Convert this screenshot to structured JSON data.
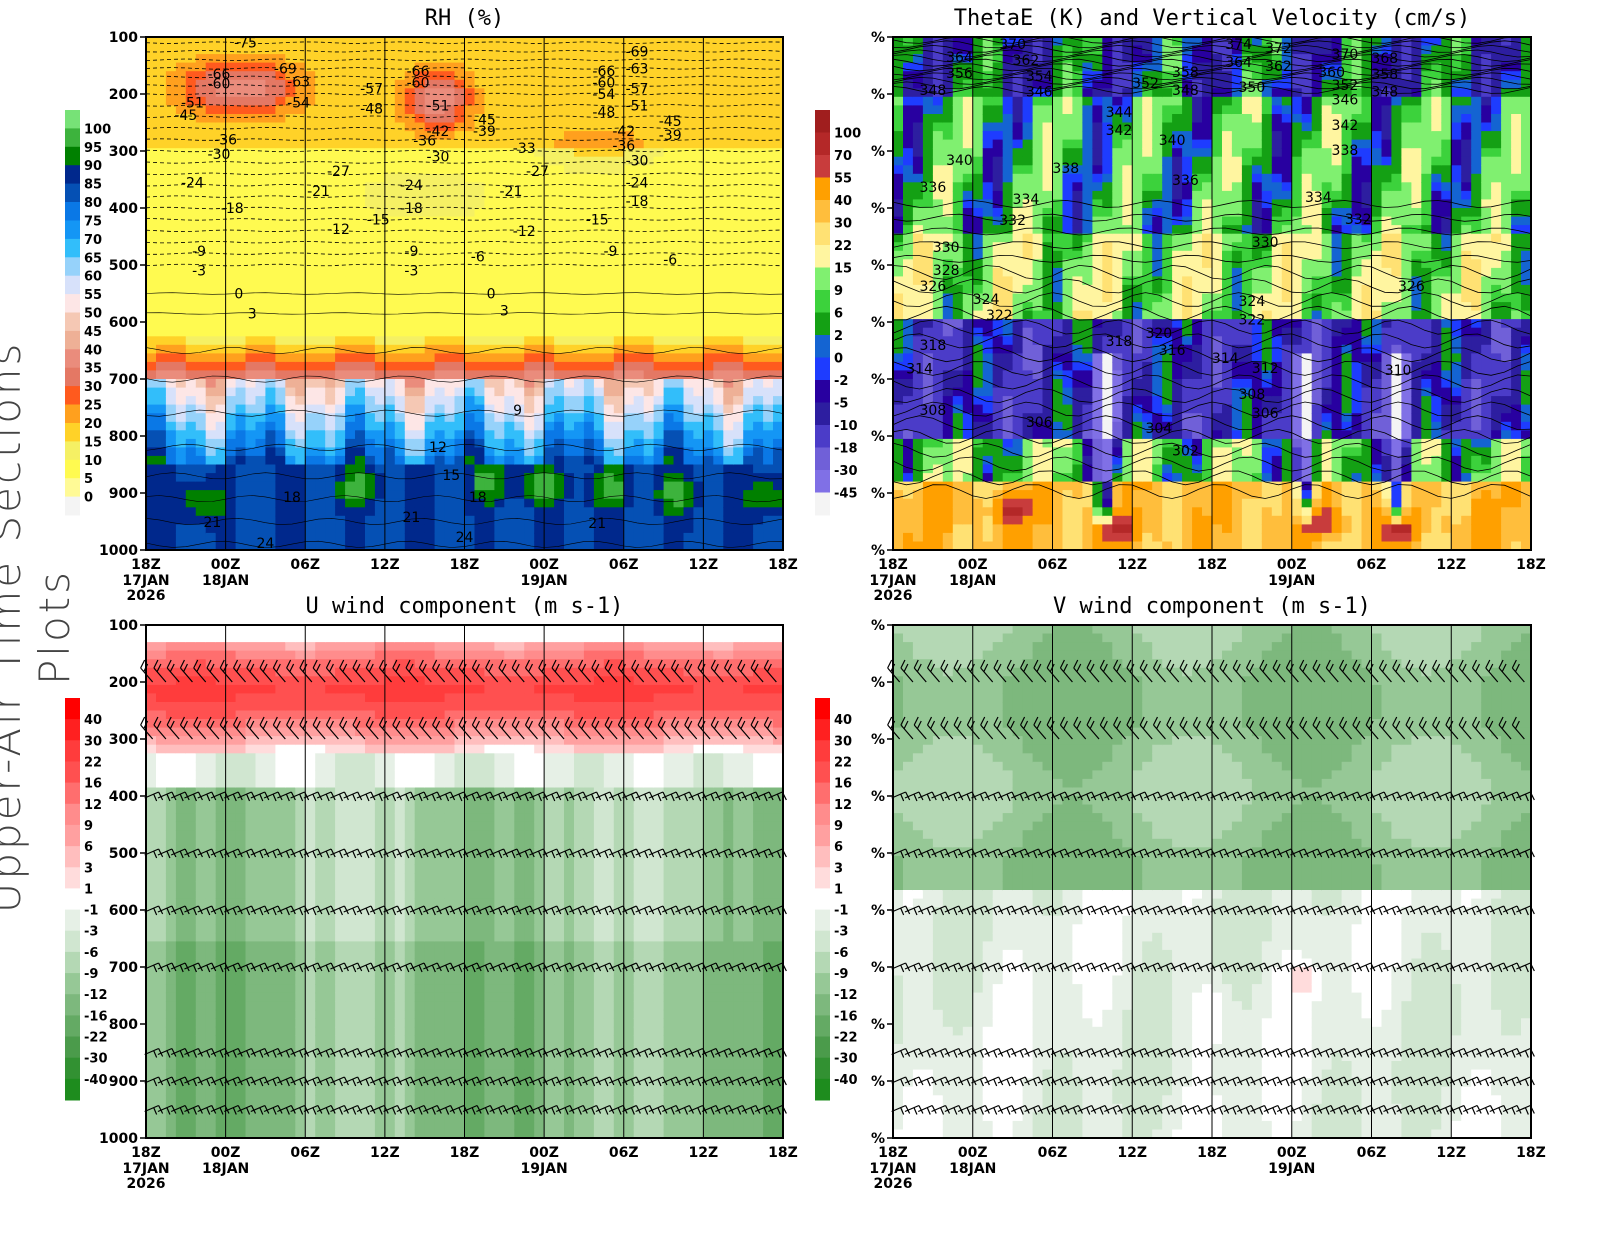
{
  "page": {
    "side_title": "Upper-Air Time Sections Plots"
  },
  "time_axis": {
    "ticks": [
      "18Z",
      "00Z",
      "06Z",
      "12Z",
      "18Z",
      "00Z",
      "06Z",
      "12Z",
      "18Z"
    ],
    "hours": [
      0,
      6,
      12,
      18,
      24,
      30,
      36,
      42,
      48
    ],
    "dates": [
      {
        "tick": 0,
        "lines": [
          "17JAN",
          "2026"
        ]
      },
      {
        "tick": 1,
        "lines": [
          "18JAN"
        ]
      },
      {
        "tick": 5,
        "lines": [
          "19JAN"
        ]
      }
    ],
    "range_hours": [
      0,
      48
    ]
  },
  "chart_data": [
    {
      "id": "rh",
      "type": "heatmap",
      "title": "RH (%)",
      "ylabels": [
        "100",
        "200",
        "300",
        "400",
        "500",
        "600",
        "700",
        "800",
        "900",
        "1000"
      ],
      "yvalues": [
        100,
        200,
        300,
        400,
        500,
        600,
        700,
        800,
        900,
        1000
      ],
      "ylim": [
        100,
        1000
      ],
      "colorbar": {
        "labels": [
          "100",
          "95",
          "90",
          "85",
          "80",
          "75",
          "70",
          "65",
          "60",
          "55",
          "50",
          "45",
          "40",
          "35",
          "30",
          "25",
          "20",
          "15",
          "10",
          "5",
          "0"
        ],
        "colors": [
          "#77e277",
          "#3db33d",
          "#008000",
          "#00288c",
          "#0550b4",
          "#0a78e6",
          "#1496f5",
          "#32befa",
          "#96d2fa",
          "#d7e1fa",
          "#fde6e6",
          "#f5c8b4",
          "#eeb096",
          "#ea8c7c",
          "#e47864",
          "#ff5a1e",
          "#ffa01e",
          "#ffd228",
          "#f5f064",
          "#fffa50",
          "#fffa96",
          "#f4f4f4"
        ]
      },
      "contour_labels": [
        [
          7.5,
          110,
          "-75"
        ],
        [
          10.5,
          155,
          "-69"
        ],
        [
          5.5,
          165,
          "-66"
        ],
        [
          11.5,
          178,
          "-63"
        ],
        [
          5.5,
          182,
          "-60"
        ],
        [
          11.5,
          215,
          "-54"
        ],
        [
          3.5,
          215,
          "-51"
        ],
        [
          3,
          237,
          "-45"
        ],
        [
          17,
          190,
          "-57"
        ],
        [
          17,
          225,
          "-48"
        ],
        [
          20.5,
          160,
          "-66"
        ],
        [
          20.5,
          180,
          "-60"
        ],
        [
          22,
          220,
          "-51"
        ],
        [
          25.5,
          245,
          "-45"
        ],
        [
          22,
          265,
          "-42"
        ],
        [
          25.5,
          265,
          "-39"
        ],
        [
          21,
          282,
          "-36"
        ],
        [
          22,
          310,
          "-30"
        ],
        [
          6,
          280,
          "-36"
        ],
        [
          5.5,
          305,
          "-30"
        ],
        [
          28.5,
          295,
          "-33"
        ],
        [
          29.5,
          335,
          "-27"
        ],
        [
          14.5,
          335,
          "-27"
        ],
        [
          3.5,
          355,
          "-24"
        ],
        [
          20,
          360,
          "-24"
        ],
        [
          13,
          370,
          "-21"
        ],
        [
          27.5,
          370,
          "-21"
        ],
        [
          6.5,
          400,
          "-18"
        ],
        [
          20,
          400,
          "-18"
        ],
        [
          17.5,
          420,
          "-15"
        ],
        [
          14.5,
          437,
          "-12"
        ],
        [
          28.5,
          440,
          "-12"
        ],
        [
          4,
          475,
          "-9"
        ],
        [
          20,
          475,
          "-9"
        ],
        [
          4,
          510,
          "-3"
        ],
        [
          20,
          510,
          "-3"
        ],
        [
          25,
          485,
          "-6"
        ],
        [
          7,
          550,
          "0"
        ],
        [
          8,
          585,
          "3"
        ],
        [
          26,
          550,
          "0"
        ],
        [
          27,
          580,
          "3"
        ],
        [
          34.5,
          160,
          "-66"
        ],
        [
          37,
          125,
          "-69"
        ],
        [
          37,
          155,
          "-63"
        ],
        [
          34.5,
          180,
          "-60"
        ],
        [
          37,
          190,
          "-57"
        ],
        [
          34.5,
          200,
          "-54"
        ],
        [
          37,
          220,
          "-51"
        ],
        [
          34.5,
          232,
          "-48"
        ],
        [
          39.5,
          247,
          "-45"
        ],
        [
          36,
          265,
          "-42"
        ],
        [
          39.5,
          272,
          "-39"
        ],
        [
          36,
          290,
          "-36"
        ],
        [
          37,
          317,
          "-30"
        ],
        [
          37,
          355,
          "-24"
        ],
        [
          37,
          388,
          "-18"
        ],
        [
          34,
          420,
          "-15"
        ],
        [
          35,
          475,
          "-9"
        ],
        [
          39.5,
          490,
          "-6"
        ],
        [
          28,
          754,
          "9"
        ],
        [
          22,
          819,
          "12"
        ],
        [
          23,
          868,
          "15"
        ],
        [
          11,
          907,
          "18"
        ],
        [
          25,
          907,
          "18"
        ],
        [
          5,
          951,
          "21"
        ],
        [
          20,
          942,
          "21"
        ],
        [
          34,
          953,
          "21"
        ],
        [
          9,
          988,
          "24"
        ],
        [
          24,
          977,
          "24"
        ]
      ]
    },
    {
      "id": "thetae",
      "type": "heatmap",
      "title": "ThetaE (K) and Vertical Velocity (cm/s)",
      "ylabels": [
        "%",
        "%",
        "%",
        "%",
        "%",
        "%",
        "%",
        "%",
        "%",
        "%"
      ],
      "yvalues": [
        100,
        200,
        300,
        400,
        500,
        600,
        700,
        800,
        900,
        1000
      ],
      "ylim": [
        100,
        1000
      ],
      "colorbar": {
        "labels": [
          "100",
          "70",
          "55",
          "40",
          "30",
          "22",
          "15",
          "9",
          "6",
          "2",
          "0",
          "-2",
          "-5",
          "-10",
          "-18",
          "-30",
          "-45"
        ],
        "colors": [
          "#a01e1e",
          "#b42828",
          "#c83c3c",
          "#ffa000",
          "#ffbe3c",
          "#ffe173",
          "#fff5a0",
          "#80f070",
          "#3cd23c",
          "#14a014",
          "#1464d2",
          "#1e3cff",
          "#2800a0",
          "#2d1ea0",
          "#4b3cc8",
          "#7060d8",
          "#8070e6",
          "#f4f4f4"
        ]
      },
      "contour_labels": [
        [
          5,
          135,
          "364"
        ],
        [
          9,
          112,
          "370"
        ],
        [
          5,
          163,
          "356"
        ],
        [
          10,
          140,
          "362"
        ],
        [
          11,
          168,
          "354"
        ],
        [
          3,
          193,
          "348"
        ],
        [
          11,
          196,
          "346"
        ],
        [
          26,
          112,
          "374"
        ],
        [
          29,
          119,
          "372"
        ],
        [
          26,
          144,
          "364"
        ],
        [
          29,
          151,
          "362"
        ],
        [
          34,
          130,
          "370"
        ],
        [
          37,
          137,
          "368"
        ],
        [
          33,
          161,
          "360"
        ],
        [
          37,
          165,
          "358"
        ],
        [
          22,
          161,
          "358"
        ],
        [
          19,
          181,
          "352"
        ],
        [
          22,
          193,
          "348"
        ],
        [
          27,
          188,
          "350"
        ],
        [
          34,
          184,
          "352"
        ],
        [
          37,
          196,
          "348"
        ],
        [
          34,
          210,
          "346"
        ],
        [
          17,
          232,
          "344"
        ],
        [
          17,
          263,
          "342"
        ],
        [
          34,
          254,
          "342"
        ],
        [
          21,
          281,
          "340"
        ],
        [
          34,
          298,
          "338"
        ],
        [
          5,
          316,
          "340"
        ],
        [
          13,
          330,
          "338"
        ],
        [
          22,
          351,
          "336"
        ],
        [
          3,
          363,
          "336"
        ],
        [
          10,
          384,
          "334"
        ],
        [
          32,
          381,
          "334"
        ],
        [
          9,
          421,
          "332"
        ],
        [
          35,
          419,
          "332"
        ],
        [
          4,
          468,
          "330"
        ],
        [
          28,
          460,
          "330"
        ],
        [
          4,
          509,
          "328"
        ],
        [
          3,
          537,
          "326"
        ],
        [
          39,
          537,
          "326"
        ],
        [
          7,
          560,
          "324"
        ],
        [
          27,
          563,
          "324"
        ],
        [
          8,
          588,
          "322"
        ],
        [
          27,
          596,
          "322"
        ],
        [
          20,
          619,
          "320"
        ],
        [
          17,
          633,
          "318"
        ],
        [
          3,
          640,
          "318"
        ],
        [
          21,
          649,
          "316"
        ],
        [
          2,
          682,
          "314"
        ],
        [
          25,
          663,
          "314"
        ],
        [
          28,
          681,
          "312"
        ],
        [
          38,
          684,
          "310"
        ],
        [
          3,
          754,
          "308"
        ],
        [
          27,
          726,
          "308"
        ],
        [
          11,
          775,
          "306"
        ],
        [
          28,
          760,
          "306"
        ],
        [
          20,
          786,
          "304"
        ],
        [
          22,
          825,
          "302"
        ]
      ]
    },
    {
      "id": "uwind",
      "type": "heatmap",
      "title": "U wind component (m s-1)",
      "ylabels": [
        "100",
        "200",
        "300",
        "400",
        "500",
        "600",
        "700",
        "800",
        "900",
        "1000"
      ],
      "yvalues": [
        100,
        200,
        300,
        400,
        500,
        600,
        700,
        800,
        900,
        1000
      ],
      "ylim": [
        100,
        1000
      ],
      "wind_barb_levels": [
        200,
        300,
        400,
        500,
        600,
        700,
        850,
        900,
        950
      ],
      "colorbar": {
        "labels": [
          "40",
          "30",
          "22",
          "16",
          "12",
          "9",
          "6",
          "3",
          "1",
          "-1",
          "-3",
          "-6",
          "-9",
          "-12",
          "-16",
          "-22",
          "-30",
          "-40"
        ],
        "colors": [
          "#ff0000",
          "#ff2020",
          "#ff3c3c",
          "#ff5050",
          "#ff6e6e",
          "#ff8c8c",
          "#ffa0a0",
          "#ffbebe",
          "#ffdcdc",
          "#ffffff",
          "#e6f0e6",
          "#d0e6d0",
          "#b4d8b4",
          "#96c896",
          "#7db87d",
          "#64aa64",
          "#4b9b4b",
          "#329132",
          "#1e8c1e"
        ]
      },
      "contour_labels": []
    },
    {
      "id": "vwind",
      "type": "heatmap",
      "title": "V wind component (m s-1)",
      "ylabels": [
        "%",
        "%",
        "%",
        "%",
        "%",
        "%",
        "%",
        "%",
        "%",
        "%"
      ],
      "yvalues": [
        100,
        200,
        300,
        400,
        500,
        600,
        700,
        800,
        900,
        1000
      ],
      "ylim": [
        100,
        1000
      ],
      "wind_barb_levels": [
        200,
        300,
        400,
        500,
        600,
        700,
        850,
        900,
        950
      ],
      "colorbar": {
        "labels": [
          "40",
          "30",
          "22",
          "16",
          "12",
          "9",
          "6",
          "3",
          "1",
          "-1",
          "-3",
          "-6",
          "-9",
          "-12",
          "-16",
          "-22",
          "-30",
          "-40"
        ],
        "colors": [
          "#ff0000",
          "#ff2020",
          "#ff3c3c",
          "#ff5050",
          "#ff6e6e",
          "#ff8c8c",
          "#ffa0a0",
          "#ffbebe",
          "#ffdcdc",
          "#ffffff",
          "#e6f0e6",
          "#d0e6d0",
          "#b4d8b4",
          "#96c896",
          "#7db87d",
          "#64aa64",
          "#4b9b4b",
          "#329132",
          "#1e8c1e"
        ]
      },
      "contour_labels": []
    }
  ]
}
